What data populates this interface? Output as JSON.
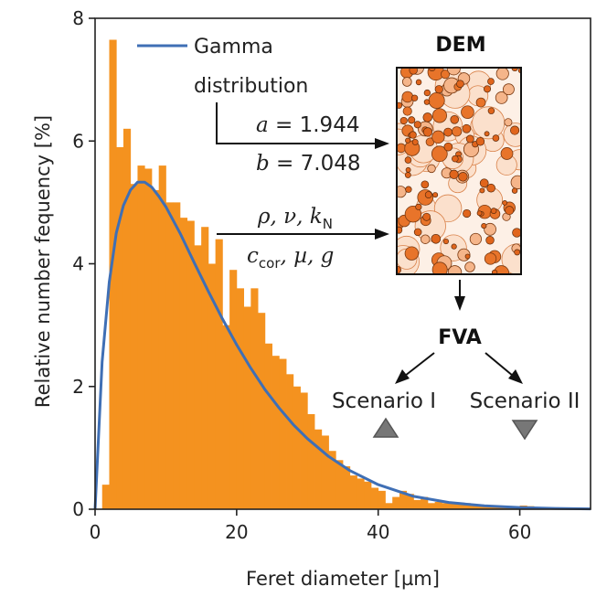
{
  "chart_data": {
    "type": "bar",
    "xlabel": "Feret diameter [µm]",
    "ylabel": "Relative number fequency [%]",
    "xlim": [
      0,
      70
    ],
    "ylim": [
      0,
      8
    ],
    "xticks": [
      0,
      20,
      40,
      60
    ],
    "yticks": [
      0,
      2,
      4,
      6,
      8
    ],
    "xtick_labels": [
      "0",
      "20",
      "40",
      "60"
    ],
    "ytick_labels": [
      "0",
      "2",
      "4",
      "6",
      "8"
    ],
    "bin_width": 1,
    "bin_start": 1,
    "bar_color": "#F4921F",
    "histogram_values": [
      0.4,
      7.65,
      5.9,
      6.2,
      5.3,
      5.6,
      5.55,
      5.2,
      5.6,
      5.0,
      5.0,
      4.75,
      4.7,
      4.3,
      4.6,
      4.0,
      4.4,
      3.0,
      3.9,
      3.6,
      3.3,
      3.6,
      3.2,
      2.7,
      2.5,
      2.45,
      2.2,
      2.0,
      1.9,
      1.55,
      1.3,
      1.2,
      0.95,
      0.8,
      0.7,
      0.55,
      0.5,
      0.45,
      0.35,
      0.3,
      0.1,
      0.2,
      0.3,
      0.25,
      0.15,
      0.2,
      0.1,
      0.12,
      0.1,
      0.1,
      0.08,
      0.1,
      0.06,
      0.06,
      0.05,
      0.05,
      0.04,
      0.04,
      0.04,
      0.06,
      0.05,
      0.02,
      0.02,
      0.02,
      0.02,
      0.02,
      0.01,
      0.01,
      0.01
    ],
    "series": [
      {
        "name": "Gamma distribution",
        "kind": "curve",
        "color": "#3F6FB5",
        "x": [
          0,
          1,
          2,
          3,
          4,
          5,
          6,
          7,
          8,
          9,
          10,
          12,
          14,
          16,
          18,
          20,
          22,
          24,
          26,
          28,
          30,
          33,
          36,
          40,
          45,
          50,
          55,
          60,
          65,
          70
        ],
        "y": [
          0,
          2.4,
          3.7,
          4.5,
          4.95,
          5.2,
          5.33,
          5.33,
          5.25,
          5.1,
          4.93,
          4.5,
          4.02,
          3.55,
          3.1,
          2.68,
          2.3,
          1.95,
          1.65,
          1.38,
          1.15,
          0.86,
          0.63,
          0.4,
          0.21,
          0.11,
          0.055,
          0.028,
          0.013,
          0.006
        ]
      }
    ]
  },
  "legend": {
    "line1": "Gamma",
    "line2": "distribution"
  },
  "annotations": {
    "params_a_label": "a",
    "params_a_value": " = 1.944",
    "params_b_label": "b",
    "params_b_value": " = 7.048",
    "material_line1": "ρ, ν, k",
    "material_line1_sub": "N",
    "material_line2_c": "c",
    "material_line2_sub": "cor",
    "material_line2_rest": ", µ, g",
    "dem_label": "DEM",
    "fva_label": "FVA",
    "scenario1_label": "Scenario I",
    "scenario2_label": "Scenario II"
  },
  "colors": {
    "bar": "#F4921F",
    "curve": "#3F6FB5",
    "triangle": "#777777",
    "dem_circle_dark": "#E8742A",
    "dem_circle_light": "#FBE3D2"
  }
}
